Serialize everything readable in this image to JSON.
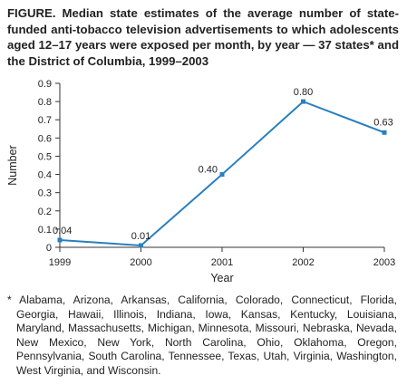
{
  "title": "FIGURE. Median state estimates of the average number of state-funded anti-tobacco television advertisements to which adolescents aged 12–17 years were exposed per month, by year — 37 states* and the District of Columbia, 1999–2003",
  "footnote": "* Alabama, Arizona, Arkansas, California, Colorado, Connecticut, Florida, Georgia, Hawaii, Illinois, Indiana, Iowa, Kansas, Kentucky, Louisiana, Maryland, Massachusetts, Michigan, Minnesota, Missouri, Nebraska, Nevada, New Mexico, New York, North Carolina, Ohio, Oklahoma, Oregon, Pennsylvania, South Carolina, Tennessee, Texas, Utah, Virginia, Washington, West Virginia, and Wisconsin.",
  "colors": {
    "series": "#2a7fbf",
    "axis": "#333333",
    "text": "#222222"
  },
  "chart_data": {
    "type": "line",
    "xlabel": "Year",
    "ylabel": "Number",
    "ylim": [
      0,
      0.9
    ],
    "yticks": [
      "0",
      "0.1",
      "0.2",
      "0.3",
      "0.4",
      "0.5",
      "0.6",
      "0.7",
      "0.8",
      "0.9"
    ],
    "x": [
      "1999",
      "2000",
      "2001",
      "2002",
      "2003"
    ],
    "series": [
      {
        "values": [
          0.04,
          0.01,
          0.4,
          0.8,
          0.63
        ],
        "labels": [
          "0.04",
          "0.01",
          "0.40",
          "0.80",
          "0.63"
        ]
      }
    ],
    "grid": false
  }
}
